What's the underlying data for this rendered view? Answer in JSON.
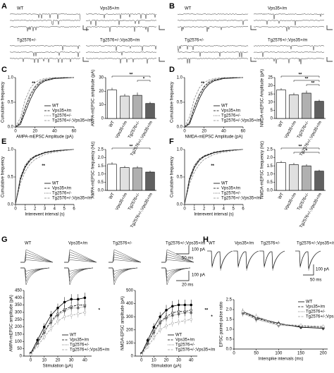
{
  "figure": {
    "panel_labels": [
      "A",
      "B",
      "C",
      "D",
      "E",
      "F",
      "G",
      "H"
    ],
    "trace_labels": [
      "WT",
      "Vps35+/m",
      "Tg2576+/-",
      "Tg2576+/-;Vps35+/m"
    ],
    "g_scale_labels": [
      "100 pA",
      "50 ms",
      "100 pA",
      "20 ms"
    ],
    "h_scale_labels": [
      "100 pA",
      "50 ms"
    ]
  },
  "chart_data": [
    {
      "type": "line",
      "xlabel": "AMPA-mEPSC Amplitude (pA)",
      "ylabel": "Cumulative frequency",
      "x": [
        0,
        5,
        10,
        15,
        20,
        25,
        30,
        40,
        50,
        60
      ],
      "xlim": [
        0,
        60
      ],
      "xticks": [
        0,
        20,
        40,
        60
      ],
      "ylim": [
        0,
        1
      ],
      "yticks": [
        {
          "value": 0,
          "label": "0.0"
        },
        0.5,
        {
          "value": 1,
          "label": "1.0"
        }
      ],
      "legend": "lower right",
      "annotations": [
        "**"
      ],
      "series": [
        {
          "name": "WT",
          "color": "#000000",
          "dash": "solid",
          "values": [
            0,
            0.05,
            0.3,
            0.55,
            0.75,
            0.87,
            0.93,
            0.98,
            0.99,
            1
          ]
        },
        {
          "name": "Vps35+/m",
          "color": "#000000",
          "dash": "dashed",
          "values": [
            0,
            0.08,
            0.38,
            0.63,
            0.8,
            0.9,
            0.95,
            0.99,
            1,
            1
          ]
        },
        {
          "name": "Tg2576+/-",
          "color": "#555555",
          "dash": "dotted",
          "values": [
            0,
            0.1,
            0.42,
            0.67,
            0.83,
            0.92,
            0.96,
            0.99,
            1,
            1
          ]
        },
        {
          "name": "Tg2576+/-;Vps35+/m",
          "color": "#888888",
          "dash": "dashed",
          "values": [
            0,
            0.18,
            0.55,
            0.78,
            0.9,
            0.95,
            0.98,
            1,
            1,
            1
          ]
        }
      ]
    },
    {
      "type": "bar",
      "ylabel": "AMPA-mEPSC amplitude (pA)",
      "categories": [
        "WT",
        "Vps35+/m",
        "Tg2576+/-",
        "Tg2576+/-;Vps35+/m"
      ],
      "values": [
        21,
        16.5,
        17,
        11
      ],
      "errors": [
        1.5,
        1.5,
        2,
        1.2
      ],
      "colors": [
        "#ffffff",
        "#e0e0e0",
        "#b0b0b0",
        "#606060"
      ],
      "ylim": [
        0,
        30
      ],
      "yticks": [
        0,
        10,
        20,
        30
      ],
      "annotations": [
        "**",
        "*"
      ]
    },
    {
      "type": "line",
      "xlabel": "NMDA-mEPSC Amplitude (pA)",
      "ylabel": "Cumulative frequency",
      "x": [
        0,
        5,
        10,
        15,
        20,
        25,
        30,
        40,
        50,
        60
      ],
      "xlim": [
        0,
        60
      ],
      "xticks": [
        0,
        20,
        40,
        60
      ],
      "ylim": [
        0,
        1
      ],
      "yticks": [
        {
          "value": 0,
          "label": "0.0"
        },
        0.5,
        {
          "value": 1,
          "label": "1.0"
        }
      ],
      "legend": "lower right",
      "annotations": [
        "**"
      ],
      "series": [
        {
          "name": "WT",
          "color": "#000000",
          "dash": "solid",
          "values": [
            0,
            0.06,
            0.32,
            0.57,
            0.76,
            0.87,
            0.93,
            0.98,
            0.99,
            1
          ]
        },
        {
          "name": "Vps35+/m",
          "color": "#000000",
          "dash": "dashed",
          "values": [
            0,
            0.09,
            0.4,
            0.64,
            0.81,
            0.9,
            0.95,
            0.99,
            1,
            1
          ]
        },
        {
          "name": "Tg2576+/-",
          "color": "#555555",
          "dash": "dotted",
          "values": [
            0,
            0.1,
            0.43,
            0.67,
            0.83,
            0.92,
            0.96,
            0.99,
            1,
            1
          ]
        },
        {
          "name": "Tg2576+/-;Vps35+/m",
          "color": "#888888",
          "dash": "dashed",
          "values": [
            0,
            0.2,
            0.57,
            0.79,
            0.9,
            0.95,
            0.98,
            1,
            1,
            1
          ]
        }
      ]
    },
    {
      "type": "bar",
      "ylabel": "NMDA-mEPSC Amplitude (pA)",
      "categories": [
        "WT",
        "Vps35+/m",
        "Tg2576+/-",
        "Tg2576+/-;Vps35+/m"
      ],
      "values": [
        17.5,
        14.5,
        15.5,
        10.5
      ],
      "errors": [
        1,
        1.2,
        1.5,
        1
      ],
      "colors": [
        "#ffffff",
        "#e0e0e0",
        "#b0b0b0",
        "#606060"
      ],
      "ylim": [
        0,
        25
      ],
      "yticks": [
        0,
        5,
        10,
        15,
        20,
        25
      ],
      "annotations": [
        "**",
        "**",
        "**"
      ]
    },
    {
      "type": "line",
      "xlabel": "Interevent interval (s)",
      "ylabel": "Cumulative frequency",
      "x": [
        0,
        0.5,
        1,
        1.5,
        2,
        3,
        4,
        5,
        6
      ],
      "xlim": [
        0,
        6
      ],
      "xticks": [
        0,
        1,
        2,
        3,
        4,
        5,
        6
      ],
      "ylim": [
        0,
        1
      ],
      "yticks": [
        {
          "value": 0,
          "label": "0.0"
        },
        0.5,
        {
          "value": 1,
          "label": "1.0"
        }
      ],
      "legend": "lower right",
      "annotations": [
        "**"
      ],
      "series": [
        {
          "name": "WT",
          "color": "#000000",
          "dash": "solid",
          "values": [
            0,
            0.45,
            0.68,
            0.8,
            0.87,
            0.94,
            0.97,
            0.99,
            1
          ]
        },
        {
          "name": "Vps35+/m",
          "color": "#000000",
          "dash": "dashed",
          "values": [
            0,
            0.48,
            0.7,
            0.82,
            0.88,
            0.95,
            0.98,
            0.99,
            1
          ]
        },
        {
          "name": "Tg2576+/-",
          "color": "#555555",
          "dash": "dotted",
          "values": [
            0,
            0.5,
            0.72,
            0.83,
            0.89,
            0.95,
            0.98,
            0.99,
            1
          ]
        },
        {
          "name": "Tg2576+/-;Vps35+/m",
          "color": "#888888",
          "dash": "dashed",
          "values": [
            0,
            0.38,
            0.6,
            0.74,
            0.82,
            0.91,
            0.95,
            0.98,
            1
          ]
        }
      ]
    },
    {
      "type": "bar",
      "ylabel": "AMPA-mEPSC frequency (Hz)",
      "categories": [
        "WT",
        "Vps35+/m",
        "Tg2576+/-",
        "Tg2576+/-;Vps35+/m"
      ],
      "values": [
        1.6,
        1.4,
        1.38,
        1.12
      ],
      "errors": [
        0.12,
        0.1,
        0.1,
        0.08
      ],
      "colors": [
        "#ffffff",
        "#e0e0e0",
        "#b0b0b0",
        "#606060"
      ],
      "ylim": [
        0,
        2.5
      ],
      "yticks": [
        {
          "value": 0,
          "label": "0.0"
        },
        0.5,
        {
          "value": 1,
          "label": "1.0"
        },
        1.5,
        {
          "value": 2,
          "label": "2.0"
        },
        2.5
      ],
      "annotations": [
        "**"
      ]
    },
    {
      "type": "line",
      "xlabel": "Interevent interval (s)",
      "ylabel": "Cumulative frequency",
      "x": [
        0,
        0.5,
        1,
        1.5,
        2,
        3,
        4,
        5,
        6
      ],
      "xlim": [
        0,
        6
      ],
      "xticks": [
        0,
        1,
        2,
        3,
        4,
        5,
        6
      ],
      "ylim": [
        0,
        1
      ],
      "yticks": [
        {
          "value": 0,
          "label": "0.0"
        },
        0.5,
        {
          "value": 1,
          "label": "1.0"
        }
      ],
      "legend": "lower right",
      "annotations": [
        "**"
      ],
      "series": [
        {
          "name": "WT",
          "color": "#000000",
          "dash": "solid",
          "values": [
            0,
            0.44,
            0.67,
            0.8,
            0.87,
            0.94,
            0.97,
            0.99,
            1
          ]
        },
        {
          "name": "Vps35+/m",
          "color": "#000000",
          "dash": "dashed",
          "values": [
            0,
            0.47,
            0.7,
            0.82,
            0.88,
            0.95,
            0.98,
            0.99,
            1
          ]
        },
        {
          "name": "Tg2576+/-",
          "color": "#555555",
          "dash": "dotted",
          "values": [
            0,
            0.49,
            0.71,
            0.83,
            0.89,
            0.95,
            0.98,
            0.99,
            1
          ]
        },
        {
          "name": "Tg2576+/-;Vps35+/m",
          "color": "#888888",
          "dash": "dashed",
          "values": [
            0,
            0.37,
            0.59,
            0.73,
            0.82,
            0.91,
            0.95,
            0.98,
            1
          ]
        }
      ]
    },
    {
      "type": "bar",
      "ylabel": "NMDA-mEPSC frequency (Hz)",
      "categories": [
        "WT",
        "Vps35+/m",
        "Tg2576+/-",
        "Tg2576+/-;Vps35+/m"
      ],
      "values": [
        1.7,
        1.58,
        1.5,
        1.18
      ],
      "errors": [
        0.1,
        0.1,
        0.1,
        0.08
      ],
      "colors": [
        "#ffffff",
        "#e0e0e0",
        "#b0b0b0",
        "#606060"
      ],
      "ylim": [
        0,
        2.5
      ],
      "yticks": [
        {
          "value": 0,
          "label": "0.0"
        },
        0.5,
        {
          "value": 1,
          "label": "1.0"
        },
        1.5,
        {
          "value": 2,
          "label": "2.0"
        },
        2.5
      ],
      "annotations": [
        "**",
        "*"
      ]
    },
    {
      "type": "line",
      "markers": true,
      "xlabel": "Stimulation (μA)",
      "ylabel": "AMPA-mEPSC amplitude (pA)",
      "x": [
        0,
        5,
        10,
        15,
        20,
        25,
        30,
        35,
        40
      ],
      "xlim": [
        -5,
        45
      ],
      "xticks": [
        0,
        10,
        20,
        30,
        40
      ],
      "ylim": [
        0,
        450
      ],
      "yticks": [
        0,
        50,
        100,
        150,
        200,
        250,
        300,
        350,
        400,
        450
      ],
      "legend": "lower right",
      "annotations": [
        "*"
      ],
      "series": [
        {
          "name": "WT",
          "color": "#000000",
          "dash": "solid",
          "values": [
            20,
            110,
            200,
            280,
            330,
            370,
            390,
            390,
            400
          ],
          "errors": [
            8,
            20,
            25,
            30,
            30,
            35,
            35,
            35,
            35
          ]
        },
        {
          "name": "Vps35+/m",
          "color": "#000000",
          "dash": "dashed",
          "values": [
            15,
            90,
            170,
            240,
            290,
            320,
            340,
            350,
            350
          ],
          "errors": [
            8,
            18,
            22,
            25,
            28,
            30,
            30,
            30,
            30
          ]
        },
        {
          "name": "Tg2576+/-",
          "color": "#666666",
          "dash": "dotted",
          "values": [
            15,
            85,
            160,
            230,
            280,
            310,
            330,
            330,
            340
          ],
          "errors": [
            8,
            18,
            22,
            25,
            28,
            30,
            30,
            30,
            30
          ]
        },
        {
          "name": "Tg2576+/-;Vps35+/m",
          "color": "#999999",
          "dash": "dashed",
          "values": [
            10,
            70,
            130,
            190,
            240,
            270,
            280,
            290,
            300
          ],
          "errors": [
            6,
            15,
            20,
            22,
            25,
            25,
            25,
            25,
            25
          ]
        }
      ]
    },
    {
      "type": "line",
      "markers": true,
      "xlabel": "Stimulation (μA)",
      "ylabel": "NMDA-EPSC amplitude (pA)",
      "x": [
        0,
        5,
        10,
        15,
        20,
        25,
        30,
        35,
        40
      ],
      "xlim": [
        -5,
        45
      ],
      "xticks": [
        0,
        10,
        20,
        30,
        40
      ],
      "ylim": [
        0,
        500
      ],
      "yticks": [
        0,
        100,
        200,
        300,
        400,
        500
      ],
      "legend": "lower right",
      "annotations": [
        "**",
        "*"
      ],
      "series": [
        {
          "name": "WT",
          "color": "#000000",
          "dash": "solid",
          "values": [
            20,
            120,
            220,
            300,
            350,
            380,
            390,
            390,
            390
          ],
          "errors": [
            8,
            20,
            30,
            35,
            40,
            40,
            40,
            40,
            40
          ]
        },
        {
          "name": "Vps35+/m",
          "color": "#000000",
          "dash": "dashed",
          "values": [
            15,
            100,
            190,
            260,
            300,
            330,
            340,
            340,
            350
          ],
          "errors": [
            8,
            18,
            25,
            30,
            30,
            35,
            35,
            35,
            35
          ]
        },
        {
          "name": "Tg2576+/-",
          "color": "#666666",
          "dash": "dotted",
          "values": [
            15,
            95,
            180,
            250,
            290,
            310,
            320,
            330,
            330
          ],
          "errors": [
            8,
            18,
            25,
            30,
            30,
            30,
            30,
            30,
            30
          ]
        },
        {
          "name": "Tg2576+/-;Vps35+/m",
          "color": "#999999",
          "dash": "dashed",
          "values": [
            10,
            70,
            140,
            200,
            230,
            250,
            260,
            270,
            280
          ],
          "errors": [
            6,
            15,
            20,
            25,
            25,
            25,
            25,
            25,
            25
          ]
        }
      ]
    },
    {
      "type": "line",
      "markers": true,
      "xlabel": "Interspike intervals (ms)",
      "ylabel": "EPSC paired-pulse ratio",
      "x": [
        20,
        50,
        100,
        150,
        200
      ],
      "xlim": [
        0,
        210
      ],
      "xticks": [
        0,
        50,
        100,
        150,
        200
      ],
      "ylim": [
        0,
        2.5
      ],
      "yticks": [
        {
          "value": 0,
          "label": "0.0"
        },
        0.5,
        {
          "value": 1,
          "label": "1.0"
        },
        1.5,
        {
          "value": 2,
          "label": "2.0"
        },
        2.5
      ],
      "legend": "upper right",
      "series": [
        {
          "name": "WT",
          "color": "#000000",
          "dash": "solid",
          "values": [
            1.9,
            1.6,
            1.3,
            1.1,
            1.05
          ],
          "errors": [
            0.15,
            0.15,
            0.12,
            0.1,
            0.1
          ]
        },
        {
          "name": "Vps35+/m",
          "color": "#000000",
          "dash": "dashed",
          "values": [
            1.85,
            1.55,
            1.25,
            1.15,
            1.1
          ],
          "errors": [
            0.15,
            0.15,
            0.12,
            0.1,
            0.1
          ]
        },
        {
          "name": "Tg2576+/-",
          "color": "#666666",
          "dash": "dotted",
          "values": [
            1.8,
            1.5,
            1.2,
            1.15,
            1.1
          ],
          "errors": [
            0.15,
            0.15,
            0.12,
            0.1,
            0.1
          ]
        },
        {
          "name": "Tg2576+/-;Vps35+/m",
          "color": "#999999",
          "dash": "dashed",
          "values": [
            1.9,
            1.65,
            1.25,
            1.2,
            1.15
          ],
          "errors": [
            0.15,
            0.15,
            0.12,
            0.1,
            0.1
          ]
        }
      ]
    }
  ]
}
